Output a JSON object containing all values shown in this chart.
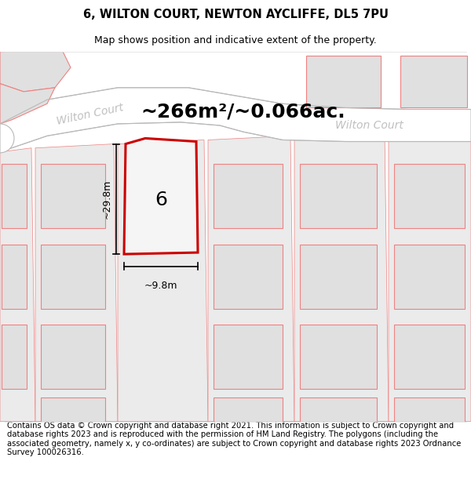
{
  "title": "6, WILTON COURT, NEWTON AYCLIFFE, DL5 7PU",
  "subtitle": "Map shows position and indicative extent of the property.",
  "footer": "Contains OS data © Crown copyright and database right 2021. This information is subject to Crown copyright and database rights 2023 and is reproduced with the permission of HM Land Registry. The polygons (including the associated geometry, namely x, y co-ordinates) are subject to Crown copyright and database rights 2023 Ordnance Survey 100026316.",
  "area_label": "~266m²/~0.066ac.",
  "height_label": "~29.8m",
  "width_label": "~9.8m",
  "number_label": "6",
  "road_label_1": "Wilton Court",
  "road_label_2": "Wilton Court",
  "map_bg": "#f0f0f0",
  "neighbor_fill": "#e0e0e0",
  "neighbor_stroke": "#f08080",
  "road_fill": "#ffffff",
  "road_stroke": "#c0c0c0",
  "highlight_stroke": "#cc0000",
  "title_fontsize": 10.5,
  "subtitle_fontsize": 9,
  "footer_fontsize": 7.2,
  "area_fontsize": 18,
  "road_fontsize": 10,
  "number_fontsize": 18,
  "dim_fontsize": 9
}
